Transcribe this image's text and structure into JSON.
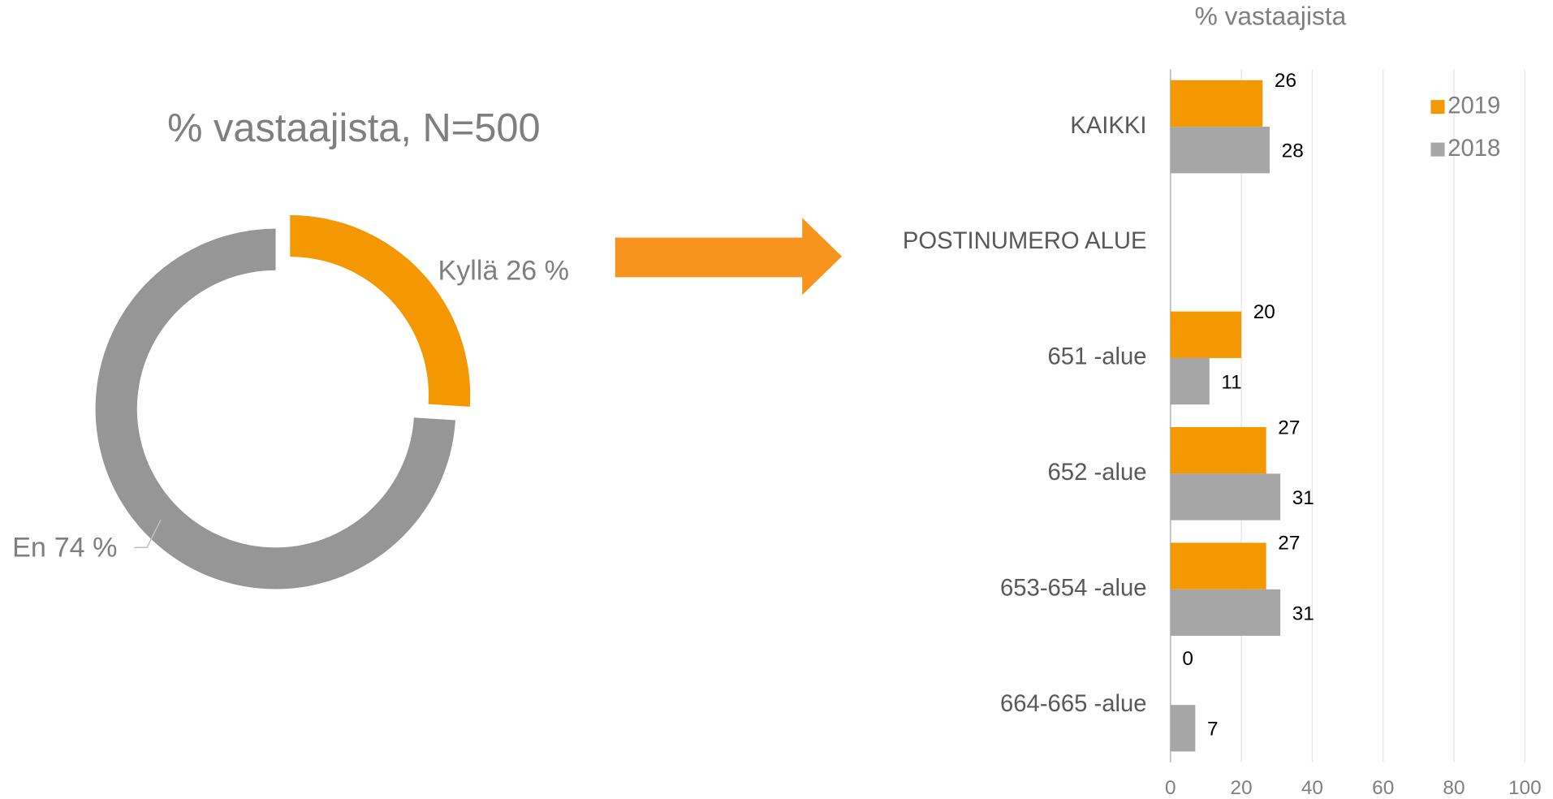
{
  "chart_data": [
    {
      "type": "donut",
      "title": "% vastaajista, N=500",
      "categories": [
        "Kyllä",
        "En"
      ],
      "values": [
        26,
        74
      ],
      "value_labels": [
        "26 %",
        "74 %"
      ],
      "colors": [
        "#f39800",
        "#969696"
      ]
    },
    {
      "type": "hbar",
      "title": "% vastaajista",
      "categories": [
        "KAIKKI",
        "POSTINUMERO ALUE",
        "651 -alue",
        "652 -alue",
        "653-654 -alue",
        "664-665 -alue"
      ],
      "series": [
        {
          "name": "2019",
          "color": "#f39800",
          "values": [
            26,
            null,
            20,
            27,
            27,
            0
          ]
        },
        {
          "name": "2018",
          "color": "#a6a6a6",
          "values": [
            28,
            null,
            11,
            31,
            31,
            7
          ]
        }
      ],
      "xlim": [
        0,
        100
      ],
      "xticks": [
        0,
        20,
        40,
        60,
        80,
        100
      ],
      "grid": true,
      "legend": "top-right"
    }
  ]
}
